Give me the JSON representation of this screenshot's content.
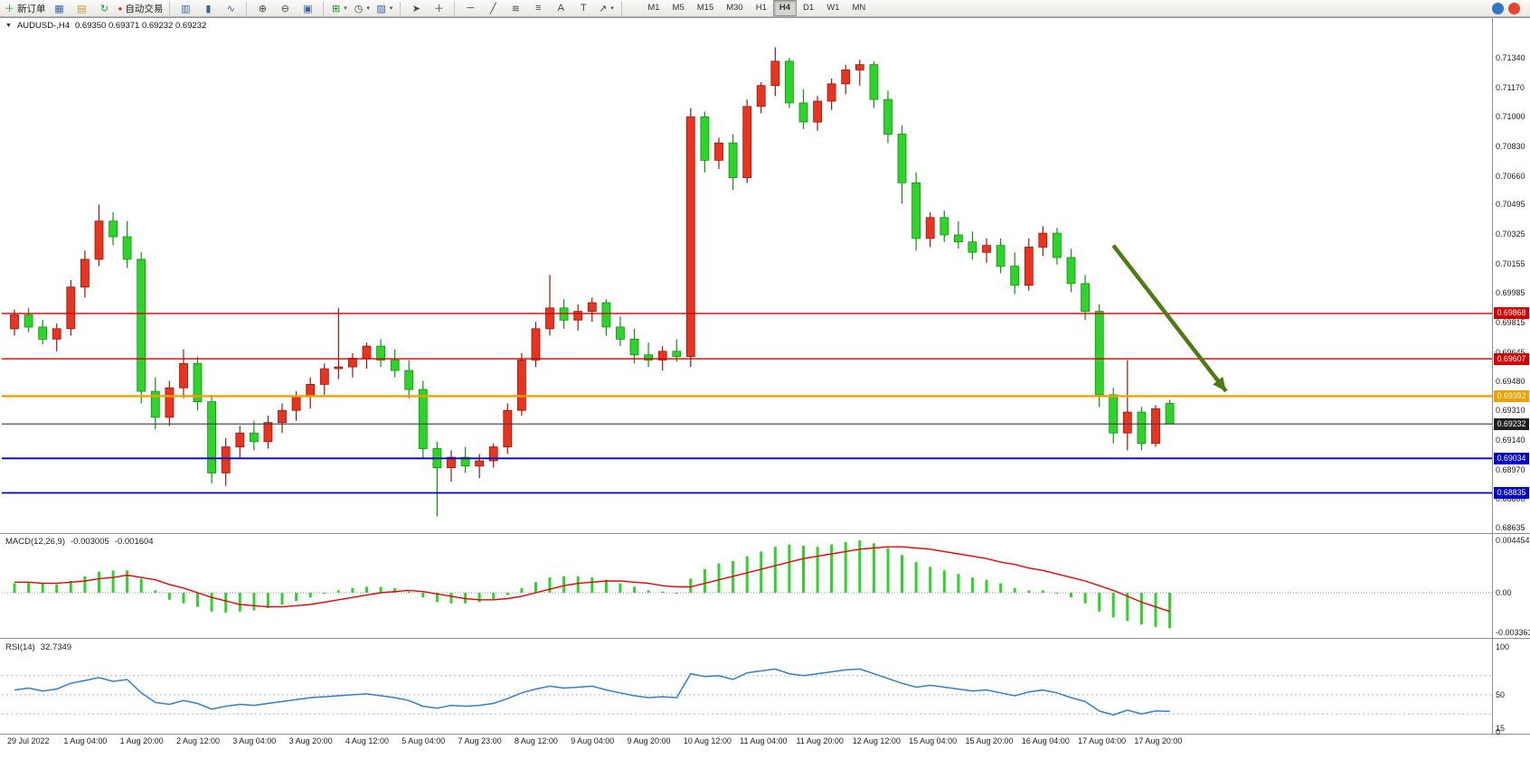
{
  "toolbar": {
    "new_order_label": "新订单",
    "auto_trading_label": "自动交易",
    "text_tool": "A",
    "label_tool": "T",
    "timeframes": [
      "M1",
      "M5",
      "M15",
      "M30",
      "H1",
      "H4",
      "D1",
      "W1",
      "MN"
    ],
    "active_timeframe": "H4"
  },
  "chart": {
    "symbol_period": "AUDUSD-,H4",
    "ohlc_text": "0.69350 0.69371 0.69232 0.69232"
  },
  "colors": {
    "bull": "#e9341f",
    "bull_border": "#9e150a",
    "bear": "#2ed42a",
    "bear_border": "#0c940c",
    "macd_hist": "#2ed42a",
    "macd_signal": "#f00000",
    "rsi_line": "#2e7fd6",
    "background": "#ffffff"
  },
  "chart_data": {
    "type": "candlestick",
    "symbol": "AUDUSD-",
    "timeframe": "H4",
    "current_bar": {
      "open": "0.69350",
      "high": "0.69371",
      "low": "0.69232",
      "close": "0.69232"
    },
    "price_axis": [
      "0.71340",
      "0.71170",
      "0.71000",
      "0.70830",
      "0.70660",
      "0.70495",
      "0.70325",
      "0.70155",
      "0.69985",
      "0.69815",
      "0.69645",
      "0.69480",
      "0.69310",
      "0.69140",
      "0.68970",
      "0.68800",
      "0.68635"
    ],
    "time_axis": [
      "29 Jul 2022",
      "1 Aug 04:00",
      "1 Aug 20:00",
      "2 Aug 12:00",
      "3 Aug 04:00",
      "3 Aug 20:00",
      "4 Aug 12:00",
      "5 Aug 04:00",
      "7 Aug 23:00",
      "8 Aug 12:00",
      "9 Aug 04:00",
      "9 Aug 20:00",
      "10 Aug 12:00",
      "11 Aug 04:00",
      "11 Aug 20:00",
      "12 Aug 12:00",
      "15 Aug 04:00",
      "15 Aug 20:00",
      "16 Aug 04:00",
      "17 Aug 04:00",
      "17 Aug 20:00"
    ],
    "hlines": [
      {
        "price": 0.69868,
        "label": "0.69868",
        "color": "#d40000",
        "width": 1.4,
        "tag_bg": "#d40000"
      },
      {
        "price": 0.69607,
        "label": "0.69607",
        "color": "#d40000",
        "width": 1.4,
        "tag_bg": "#d40000"
      },
      {
        "price": 0.69392,
        "label": "0.69392",
        "color": "#f0a000",
        "width": 2.4,
        "tag_bg": "#f0a000"
      },
      {
        "price": 0.69232,
        "label": "0.69232",
        "color": "#3c3c3c",
        "width": 1.2,
        "tag_bg": "#1f1f1f"
      },
      {
        "price": 0.69034,
        "label": "0.69034",
        "color": "#0000c8",
        "width": 1.8,
        "tag_bg": "#0000c8"
      },
      {
        "price": 0.68835,
        "label": "0.68835",
        "color": "#0000c8",
        "width": 1.8,
        "tag_bg": "#0000c8"
      }
    ],
    "arrow": {
      "i1": 78,
      "p1": 0.7026,
      "i2": 86,
      "p2": 0.6942,
      "color": "#4d7c15"
    },
    "candles": [
      [
        0.6978,
        0.6989,
        0.6974,
        0.6986
      ],
      [
        0.6986,
        0.699,
        0.6976,
        0.6979
      ],
      [
        0.6979,
        0.6983,
        0.6969,
        0.6972
      ],
      [
        0.6972,
        0.6981,
        0.6965,
        0.6978
      ],
      [
        0.6978,
        0.7006,
        0.6974,
        0.7002
      ],
      [
        0.7002,
        0.7023,
        0.6996,
        0.7018
      ],
      [
        0.7018,
        0.70495,
        0.7014,
        0.704
      ],
      [
        0.704,
        0.7045,
        0.7026,
        0.7031
      ],
      [
        0.7031,
        0.704,
        0.7013,
        0.7018
      ],
      [
        0.7018,
        0.7022,
        0.6935,
        0.6942
      ],
      [
        0.6942,
        0.695,
        0.692,
        0.6927
      ],
      [
        0.6927,
        0.6948,
        0.6922,
        0.6944
      ],
      [
        0.6944,
        0.6966,
        0.6938,
        0.6958
      ],
      [
        0.6958,
        0.6962,
        0.6931,
        0.6936
      ],
      [
        0.6936,
        0.694,
        0.6889,
        0.6895
      ],
      [
        0.6895,
        0.6915,
        0.68875,
        0.691
      ],
      [
        0.691,
        0.6922,
        0.6903,
        0.6918
      ],
      [
        0.6918,
        0.6925,
        0.6908,
        0.6913
      ],
      [
        0.6913,
        0.6928,
        0.6909,
        0.6924
      ],
      [
        0.6924,
        0.6935,
        0.6918,
        0.6931
      ],
      [
        0.6931,
        0.6942,
        0.6925,
        0.6939
      ],
      [
        0.6939,
        0.695,
        0.6932,
        0.6946
      ],
      [
        0.6946,
        0.6958,
        0.694,
        0.6955
      ],
      [
        0.6955,
        0.699,
        0.6949,
        0.6956
      ],
      [
        0.6956,
        0.6964,
        0.695,
        0.6961
      ],
      [
        0.6961,
        0.697,
        0.6955,
        0.6968
      ],
      [
        0.6968,
        0.6972,
        0.6956,
        0.696
      ],
      [
        0.696,
        0.6966,
        0.695,
        0.6954
      ],
      [
        0.6954,
        0.696,
        0.6938,
        0.6943
      ],
      [
        0.6943,
        0.6948,
        0.6903,
        0.6909
      ],
      [
        0.6909,
        0.6913,
        0.687,
        0.6898
      ],
      [
        0.6898,
        0.6908,
        0.689,
        0.6904
      ],
      [
        0.6904,
        0.691,
        0.6895,
        0.6899
      ],
      [
        0.6899,
        0.6906,
        0.6892,
        0.6902
      ],
      [
        0.6902,
        0.6912,
        0.6898,
        0.691
      ],
      [
        0.691,
        0.6935,
        0.6906,
        0.6931
      ],
      [
        0.6931,
        0.6964,
        0.6928,
        0.696
      ],
      [
        0.696,
        0.6982,
        0.6956,
        0.6978
      ],
      [
        0.6978,
        0.7009,
        0.6974,
        0.699
      ],
      [
        0.699,
        0.6995,
        0.6978,
        0.6983
      ],
      [
        0.6983,
        0.6992,
        0.6977,
        0.6988
      ],
      [
        0.6988,
        0.6996,
        0.6982,
        0.6993
      ],
      [
        0.6993,
        0.6995,
        0.6974,
        0.6979
      ],
      [
        0.6979,
        0.6985,
        0.6968,
        0.6972
      ],
      [
        0.6972,
        0.6978,
        0.6958,
        0.6963
      ],
      [
        0.6963,
        0.697,
        0.6956,
        0.696
      ],
      [
        0.696,
        0.6968,
        0.6954,
        0.6965
      ],
      [
        0.6965,
        0.6972,
        0.6959,
        0.6962
      ],
      [
        0.6962,
        0.7105,
        0.6956,
        0.71
      ],
      [
        0.71,
        0.7103,
        0.7068,
        0.7075
      ],
      [
        0.7075,
        0.7088,
        0.707,
        0.7085
      ],
      [
        0.7085,
        0.709,
        0.7058,
        0.7065
      ],
      [
        0.7065,
        0.711,
        0.7062,
        0.7106
      ],
      [
        0.7106,
        0.712,
        0.7102,
        0.7118
      ],
      [
        0.7118,
        0.714,
        0.7112,
        0.7132
      ],
      [
        0.7132,
        0.7134,
        0.7105,
        0.7108
      ],
      [
        0.7108,
        0.7116,
        0.7093,
        0.7097
      ],
      [
        0.7097,
        0.7112,
        0.7092,
        0.7109
      ],
      [
        0.7109,
        0.7122,
        0.7104,
        0.7119
      ],
      [
        0.7119,
        0.713,
        0.7113,
        0.7127
      ],
      [
        0.7127,
        0.7133,
        0.7118,
        0.713
      ],
      [
        0.713,
        0.7132,
        0.7105,
        0.711
      ],
      [
        0.711,
        0.7115,
        0.7085,
        0.709
      ],
      [
        0.709,
        0.7095,
        0.705,
        0.7062
      ],
      [
        0.7062,
        0.7068,
        0.7023,
        0.703
      ],
      [
        0.703,
        0.7045,
        0.7025,
        0.7042
      ],
      [
        0.7042,
        0.7046,
        0.7028,
        0.7032
      ],
      [
        0.7032,
        0.704,
        0.7024,
        0.7028
      ],
      [
        0.7028,
        0.7034,
        0.7018,
        0.7022
      ],
      [
        0.7022,
        0.703,
        0.7016,
        0.7026
      ],
      [
        0.7026,
        0.703,
        0.701,
        0.7014
      ],
      [
        0.7014,
        0.7022,
        0.6998,
        0.7003
      ],
      [
        0.7003,
        0.703,
        0.7,
        0.7025
      ],
      [
        0.7025,
        0.7037,
        0.702,
        0.7033
      ],
      [
        0.7033,
        0.7036,
        0.7015,
        0.7019
      ],
      [
        0.7019,
        0.7024,
        0.6999,
        0.7004
      ],
      [
        0.7004,
        0.7009,
        0.6983,
        0.6988
      ],
      [
        0.6988,
        0.6992,
        0.6933,
        0.694
      ],
      [
        0.694,
        0.6944,
        0.6912,
        0.6918
      ],
      [
        0.6918,
        0.696,
        0.6908,
        0.693
      ],
      [
        0.693,
        0.6933,
        0.6908,
        0.6912
      ],
      [
        0.6912,
        0.6934,
        0.691,
        0.6932
      ],
      [
        0.6935,
        0.69371,
        0.69232,
        0.69232
      ]
    ],
    "macd": {
      "title": "MACD(12,26,9)",
      "main_value": "-0.003005",
      "signal_value": "-0.001604",
      "ticks": [
        "0.004454",
        "0.00",
        "-0.003361"
      ],
      "histogram": [
        0.0008,
        0.0009,
        0.0008,
        0.0007,
        0.001,
        0.0014,
        0.0018,
        0.0019,
        0.0019,
        0.0012,
        0.0002,
        -0.0006,
        -0.0009,
        -0.0012,
        -0.0016,
        -0.0017,
        -0.0016,
        -0.0015,
        -0.0013,
        -0.001,
        -0.0007,
        -0.0004,
        -0.0001,
        0.0002,
        0.0004,
        0.0005,
        0.0005,
        0.0004,
        0.0001,
        -0.0004,
        -0.0008,
        -0.0009,
        -0.0009,
        -0.0008,
        -0.0006,
        -0.0002,
        0.0004,
        0.0009,
        0.0013,
        0.0014,
        0.0014,
        0.0013,
        0.0011,
        0.0008,
        0.0005,
        0.0002,
        0.0001,
        0.0,
        0.0012,
        0.002,
        0.0025,
        0.0027,
        0.0031,
        0.0035,
        0.0039,
        0.0041,
        0.004,
        0.0039,
        0.0041,
        0.0043,
        0.00445,
        0.0042,
        0.0038,
        0.0032,
        0.0026,
        0.0022,
        0.0019,
        0.0016,
        0.0013,
        0.0011,
        0.0008,
        0.0004,
        0.0002,
        0.0002,
        0.0,
        -0.0004,
        -0.0009,
        -0.0016,
        -0.0021,
        -0.0024,
        -0.0027,
        -0.0029,
        -0.003
      ],
      "signal": [
        0.0009,
        0.0009,
        0.0008,
        0.0008,
        0.0009,
        0.001,
        0.0012,
        0.0013,
        0.0015,
        0.0013,
        0.0011,
        0.0007,
        0.0004,
        0.0,
        -0.0004,
        -0.0007,
        -0.001,
        -0.0011,
        -0.0012,
        -0.0012,
        -0.0011,
        -0.001,
        -0.0008,
        -0.0006,
        -0.0004,
        -0.0002,
        0.0,
        0.0001,
        0.0002,
        0.0001,
        -0.0001,
        -0.0003,
        -0.0005,
        -0.0006,
        -0.0006,
        -0.0005,
        -0.0003,
        0.0,
        0.0003,
        0.0006,
        0.0008,
        0.0009,
        0.001,
        0.001,
        0.0009,
        0.0008,
        0.0006,
        0.0005,
        0.0005,
        0.0008,
        0.0011,
        0.0014,
        0.0017,
        0.002,
        0.0023,
        0.0026,
        0.0029,
        0.0031,
        0.0033,
        0.0035,
        0.0037,
        0.0038,
        0.0039,
        0.0039,
        0.0038,
        0.0037,
        0.0035,
        0.0033,
        0.0031,
        0.0029,
        0.0026,
        0.0024,
        0.0021,
        0.0019,
        0.0016,
        0.0013,
        0.001,
        0.0006,
        0.0002,
        -0.0003,
        -0.0008,
        -0.0012,
        -0.0016
      ]
    },
    "rsi": {
      "title": "RSI(14)",
      "value": "32.7349",
      "ticks": [
        "100",
        "50",
        "15",
        "0"
      ],
      "levels": [
        70,
        50,
        30
      ],
      "series": [
        55,
        57,
        54,
        56,
        62,
        65,
        68,
        64,
        66,
        52,
        42,
        40,
        44,
        41,
        35,
        38,
        40,
        39,
        41,
        43,
        45,
        47,
        48,
        49,
        50,
        51,
        49,
        47,
        44,
        38,
        36,
        39,
        38,
        39,
        41,
        46,
        52,
        56,
        59,
        57,
        58,
        59,
        55,
        52,
        49,
        47,
        48,
        47,
        72,
        69,
        70,
        66,
        73,
        75,
        77,
        72,
        70,
        72,
        74,
        76,
        77,
        72,
        67,
        62,
        58,
        60,
        58,
        56,
        54,
        55,
        52,
        49,
        53,
        55,
        52,
        47,
        43,
        33,
        29,
        34,
        30,
        33,
        32.7
      ]
    }
  }
}
